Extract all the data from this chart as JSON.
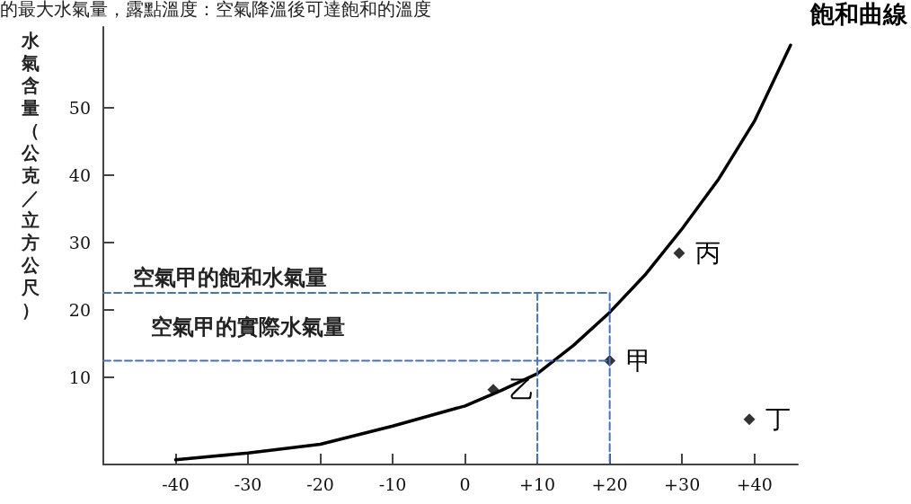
{
  "chart_data": {
    "type": "line",
    "title": "飽和曲線",
    "ylabel": "水氣含量（公克／立方公尺）",
    "xlim": [
      -50,
      46
    ],
    "ylim": [
      -3,
      62
    ],
    "xticks": [
      -40,
      -30,
      -20,
      -10,
      0,
      {
        "value": 10,
        "label": "+10"
      },
      {
        "value": 20,
        "label": "+20"
      },
      {
        "value": 30,
        "label": "+30"
      },
      {
        "value": 40,
        "label": "+40"
      }
    ],
    "yticks": [
      10,
      20,
      30,
      40,
      50
    ],
    "grid": false,
    "series": [
      {
        "color": "#000000",
        "marker": "none",
        "line_style": "solid",
        "x": [
          -40,
          -30,
          -20,
          -10,
          0,
          5,
          10,
          15,
          20,
          25,
          30,
          35,
          40,
          45
        ],
        "values": [
          -2.3,
          -1.3,
          0,
          2.7,
          5.7,
          8,
          10.5,
          14.7,
          19.6,
          25.3,
          32,
          39.3,
          48,
          59.3
        ]
      },
      {
        "type": "scatter",
        "color": "#000000",
        "marker": "diamond",
        "x": [
          3.9,
          20,
          29.6,
          39.3
        ],
        "values": [
          8.1,
          12.4,
          28.4,
          3.7
        ]
      },
      {
        "color": "#4472c4",
        "marker": "none",
        "line_style": "dashed",
        "x": [
          -50,
          20,
          20
        ],
        "values": [
          22.5,
          22.5,
          -3
        ]
      },
      {
        "color": "#4472c4",
        "marker": "none",
        "line_style": "dashed",
        "x": [
          10,
          10
        ],
        "values": [
          22.5,
          -3
        ]
      },
      {
        "color": "#4472c4",
        "marker": "none",
        "line_style": "dashed",
        "x": [
          -50,
          20
        ],
        "values": [
          12.4,
          12.4
        ]
      }
    ],
    "annotations": [
      "的最大水氣量，露點溫度：空氣降溫後可達飽和的溫度",
      "空氣甲的飽和水氣量",
      "空氣甲的實際水氣量",
      {
        "text": "乙",
        "x": 3.9,
        "y": 8.1
      },
      {
        "text": "甲",
        "x": 20,
        "y": 12.4
      },
      {
        "text": "丙",
        "x": 29.6,
        "y": 28.4
      },
      {
        "text": "丁",
        "x": 39.3,
        "y": 3.7
      }
    ]
  }
}
